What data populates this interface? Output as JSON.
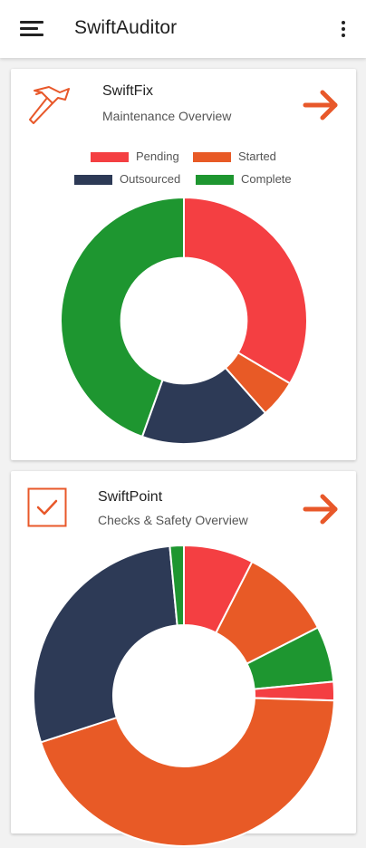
{
  "app": {
    "title": "SwiftAuditor"
  },
  "colors": {
    "accent": "#e8582a",
    "pending": "#f43f42",
    "started": "#e85a26",
    "outsourced": "#2d3a56",
    "complete": "#1e9630"
  },
  "cards": [
    {
      "title": "SwiftFix",
      "subtitle": "Maintenance Overview",
      "icon": "hammer-icon",
      "legend": [
        {
          "label": "Pending",
          "color": "#f43f42"
        },
        {
          "label": "Started",
          "color": "#e85a26"
        },
        {
          "label": "Outsourced",
          "color": "#2d3a56"
        },
        {
          "label": "Complete",
          "color": "#1e9630"
        }
      ]
    },
    {
      "title": "SwiftPoint",
      "subtitle": "Checks & Safety Overview",
      "icon": "checkbox-icon"
    }
  ],
  "chart_data": [
    {
      "type": "pie",
      "style": "donut",
      "labels": [
        "Pending",
        "Started",
        "Outsourced",
        "Complete"
      ],
      "values": [
        33.5,
        5.0,
        17.0,
        44.5
      ],
      "colors": [
        "#f43f42",
        "#e85a26",
        "#2d3a56",
        "#1e9630"
      ]
    },
    {
      "type": "pie",
      "style": "donut",
      "labels": [
        "",
        "",
        "",
        "",
        "",
        "",
        ""
      ],
      "values": [
        7.5,
        10.0,
        6.0,
        2.0,
        44.5,
        28.5,
        1.5
      ],
      "colors": [
        "#f43f42",
        "#e85a26",
        "#1e9630",
        "#f43f42",
        "#e85a26",
        "#2d3a56",
        "#1e9630"
      ]
    }
  ]
}
